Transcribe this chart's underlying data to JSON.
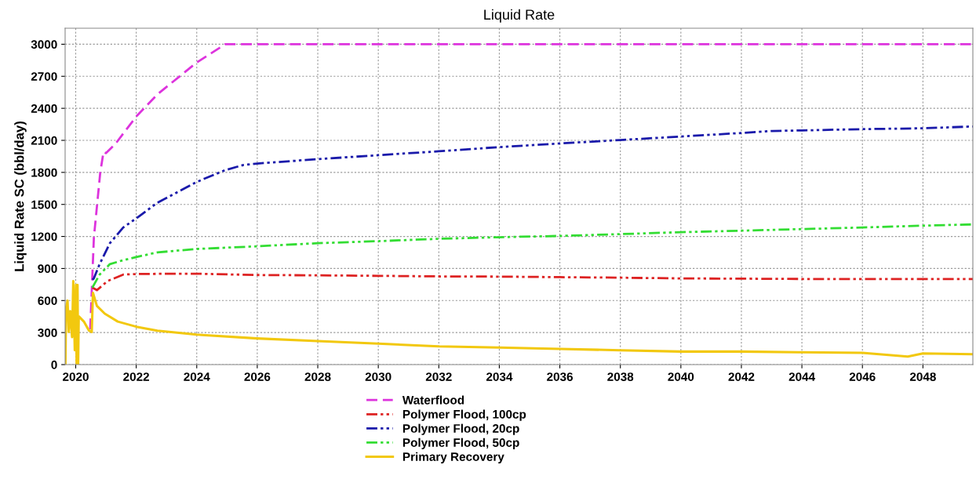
{
  "chart_data": {
    "type": "line",
    "title": "Liquid Rate",
    "ylabel": "Liquid Rate SC (bbl/day)",
    "xlim": [
      2019.65,
      2049.65
    ],
    "ylim": [
      0,
      3150
    ],
    "xticks": [
      2020,
      2022,
      2024,
      2026,
      2028,
      2030,
      2032,
      2034,
      2036,
      2038,
      2040,
      2042,
      2044,
      2046,
      2048
    ],
    "yticks": [
      0,
      300,
      600,
      900,
      1200,
      1500,
      1800,
      2100,
      2400,
      2700,
      3000
    ],
    "grid": true,
    "legend": "bottom",
    "marker": "none",
    "series": [
      {
        "name": "Waterflood",
        "color": "#dd33dd",
        "line_style": "dashed",
        "x": [
          2020.48,
          2020.6,
          2020.81,
          2020.92,
          2021.0,
          2021.31,
          2022.0,
          2022.7,
          2024.0,
          2024.94,
          2049.65
        ],
        "values": [
          330,
          1186,
          1797,
          1993,
          1980,
          2066,
          2323,
          2531,
          2829,
          3000,
          3000
        ]
      },
      {
        "name": "Polymer Flood, 100cp",
        "color": "#dd2222",
        "line_style": "dotted",
        "x": [
          2020.55,
          2020.7,
          2021.05,
          2021.57,
          2022.0,
          2023.0,
          2024.0,
          2026.0,
          2028.0,
          2030.0,
          2032.0,
          2034.0,
          2036.0,
          2038.0,
          2040.0,
          2044.0,
          2048.0,
          2049.65
        ],
        "values": [
          721,
          697,
          782,
          843,
          848,
          851,
          851,
          839,
          836,
          831,
          826,
          824,
          819,
          814,
          807,
          802,
          802,
          802
        ]
      },
      {
        "name": "Polymer Flood, 20cp",
        "color": "#1a1aaa",
        "line_style": "dotted",
        "x": [
          2020.55,
          2020.6,
          2020.79,
          2021.13,
          2021.57,
          2022.0,
          2022.7,
          2024.0,
          2024.94,
          2025.55,
          2026.0,
          2028.0,
          2030.0,
          2032.0,
          2034.0,
          2036.0,
          2038.0,
          2040.0,
          2042.0,
          2043.0,
          2044.0,
          2046.0,
          2048.0,
          2049.65
        ],
        "values": [
          795,
          807,
          941,
          1137,
          1284,
          1369,
          1516,
          1711,
          1821,
          1870,
          1883,
          1924,
          1961,
          1998,
          2037,
          2071,
          2103,
          2136,
          2169,
          2188,
          2193,
          2205,
          2213,
          2230
        ]
      },
      {
        "name": "Polymer Flood, 50cp",
        "color": "#33dd33",
        "line_style": "dotted",
        "x": [
          2020.55,
          2020.79,
          2021.13,
          2021.57,
          2022.0,
          2022.7,
          2024.0,
          2026.0,
          2028.0,
          2030.0,
          2032.0,
          2034.0,
          2036.0,
          2038.0,
          2040.0,
          2042.0,
          2044.0,
          2046.0,
          2048.0,
          2049.65
        ],
        "values": [
          721,
          843,
          941,
          978,
          1007,
          1051,
          1083,
          1108,
          1137,
          1156,
          1178,
          1193,
          1205,
          1222,
          1240,
          1254,
          1269,
          1284,
          1301,
          1313
        ]
      },
      {
        "name": "Primary Recovery",
        "color": "#f2c80f",
        "line_style": "solid",
        "x": [
          2019.66,
          2019.68,
          2019.73,
          2019.77,
          2019.82,
          2019.88,
          2019.92,
          2019.97,
          2020.01,
          2020.03,
          2020.06,
          2020.08,
          2020.1,
          2020.27,
          2020.44,
          2020.53,
          2020.57,
          2020.7,
          2020.96,
          2021.39,
          2022.0,
          2022.7,
          2024.0,
          2026.0,
          2028.0,
          2030.0,
          2032.0,
          2034.0,
          2036.0,
          2038.0,
          2040.0,
          2042.0,
          2044.0,
          2046.0,
          2047.5,
          2048.0,
          2049.65
        ],
        "values": [
          0,
          526,
          599,
          306,
          501,
          257,
          782,
          134,
          746,
          12,
          746,
          0,
          452,
          403,
          318,
          306,
          672,
          550,
          477,
          403,
          355,
          318,
          281,
          245,
          220,
          196,
          171,
          159,
          147,
          134,
          122,
          122,
          115,
          110,
          75,
          105,
          98
        ]
      }
    ]
  }
}
